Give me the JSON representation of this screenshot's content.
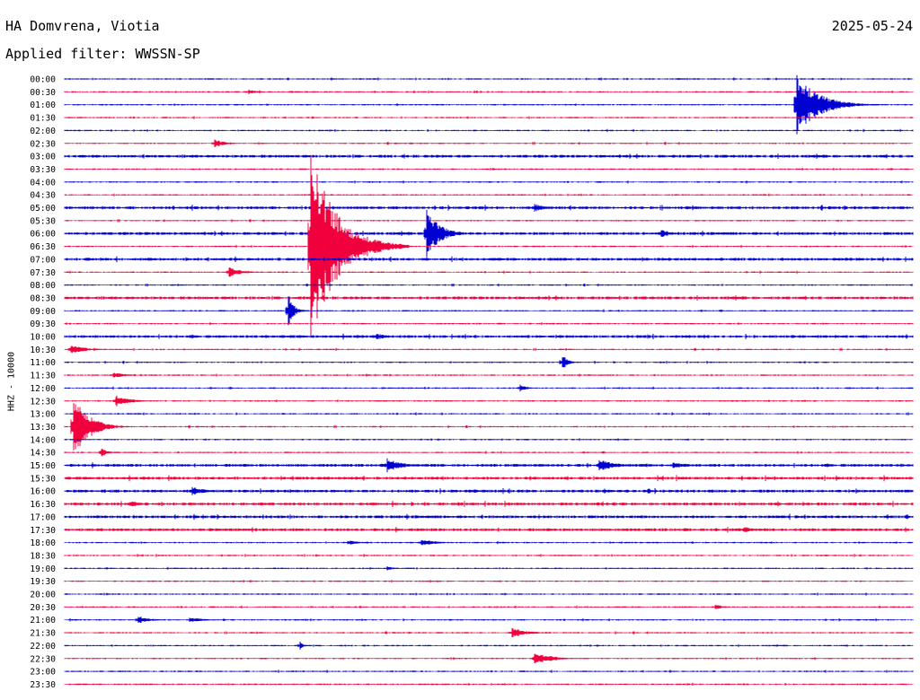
{
  "header": {
    "station": "HA Domvrena, Viotia",
    "date": "2025-05-24",
    "filter": "Applied filter: WWSSN-SP"
  },
  "chart_data": {
    "type": "line",
    "title": "",
    "ylabel": "HHZ - 10000",
    "xlabel": "",
    "colors": [
      "#0000d0",
      "#f0003c"
    ],
    "grid": false,
    "rows": [
      "00:00",
      "00:30",
      "01:00",
      "01:30",
      "02:00",
      "02:30",
      "03:00",
      "03:30",
      "04:00",
      "04:30",
      "05:00",
      "05:30",
      "06:00",
      "06:30",
      "07:00",
      "07:30",
      "08:00",
      "08:30",
      "09:00",
      "09:30",
      "10:00",
      "10:30",
      "11:00",
      "11:30",
      "12:00",
      "12:30",
      "13:00",
      "13:30",
      "14:00",
      "14:30",
      "15:00",
      "15:30",
      "16:00",
      "16:30",
      "17:00",
      "17:30",
      "18:00",
      "18:30",
      "19:00",
      "19:30",
      "20:00",
      "20:30",
      "21:00",
      "21:30",
      "22:00",
      "22:30",
      "23:00",
      "23:30"
    ],
    "noise_level": [
      1,
      1,
      1,
      1,
      1,
      1,
      2,
      1,
      1,
      1,
      2,
      1,
      2,
      1,
      2,
      1,
      1,
      2,
      1,
      1,
      2,
      1,
      1,
      1,
      1,
      1,
      1,
      1,
      1,
      1,
      2,
      2,
      2,
      2,
      2,
      2,
      1,
      1,
      1,
      1,
      1,
      1,
      1,
      1,
      1,
      1,
      1,
      1
    ],
    "events": [
      {
        "row": 2,
        "minute": 25.9,
        "amplitude": 34,
        "duration_min": 1.2
      },
      {
        "row": 5,
        "minute": 5.3,
        "amplitude": 5,
        "duration_min": 0.6
      },
      {
        "row": 1,
        "minute": 6.5,
        "amplitude": 3,
        "duration_min": 0.4
      },
      {
        "row": 13,
        "minute": 8.7,
        "amplitude": 108,
        "duration_min": 1.4
      },
      {
        "row": 12,
        "minute": 12.8,
        "amplitude": 28,
        "duration_min": 0.7
      },
      {
        "row": 12,
        "minute": 21.1,
        "amplitude": 5,
        "duration_min": 0.5
      },
      {
        "row": 10,
        "minute": 16.6,
        "amplitude": 5,
        "duration_min": 0.6
      },
      {
        "row": 15,
        "minute": 5.8,
        "amplitude": 6,
        "duration_min": 0.7
      },
      {
        "row": 18,
        "minute": 7.9,
        "amplitude": 20,
        "duration_min": 0.3
      },
      {
        "row": 20,
        "minute": 11.0,
        "amplitude": 4,
        "duration_min": 0.6
      },
      {
        "row": 21,
        "minute": 0.2,
        "amplitude": 5,
        "duration_min": 0.9
      },
      {
        "row": 22,
        "minute": 17.6,
        "amplitude": 9,
        "duration_min": 0.3
      },
      {
        "row": 23,
        "minute": 1.7,
        "amplitude": 3,
        "duration_min": 0.8
      },
      {
        "row": 24,
        "minute": 16.1,
        "amplitude": 4,
        "duration_min": 0.4
      },
      {
        "row": 25,
        "minute": 1.8,
        "amplitude": 7,
        "duration_min": 0.7
      },
      {
        "row": 27,
        "minute": 0.3,
        "amplitude": 38,
        "duration_min": 0.8
      },
      {
        "row": 29,
        "minute": 1.3,
        "amplitude": 6,
        "duration_min": 0.3
      },
      {
        "row": 30,
        "minute": 11.4,
        "amplitude": 8,
        "duration_min": 0.9
      },
      {
        "row": 30,
        "minute": 18.9,
        "amplitude": 8,
        "duration_min": 0.8
      },
      {
        "row": 30,
        "minute": 21.5,
        "amplitude": 4,
        "duration_min": 0.9
      },
      {
        "row": 32,
        "minute": 4.5,
        "amplitude": 6,
        "duration_min": 0.6
      },
      {
        "row": 32,
        "minute": 20.6,
        "amplitude": 4,
        "duration_min": 0.3
      },
      {
        "row": 33,
        "minute": 2.3,
        "amplitude": 4,
        "duration_min": 0.6
      },
      {
        "row": 35,
        "minute": 24.0,
        "amplitude": 4,
        "duration_min": 0.5
      },
      {
        "row": 36,
        "minute": 12.6,
        "amplitude": 4,
        "duration_min": 0.8
      },
      {
        "row": 36,
        "minute": 10.0,
        "amplitude": 3,
        "duration_min": 0.6
      },
      {
        "row": 38,
        "minute": 11.4,
        "amplitude": 3,
        "duration_min": 0.4
      },
      {
        "row": 41,
        "minute": 23.0,
        "amplitude": 3,
        "duration_min": 0.5
      },
      {
        "row": 42,
        "minute": 2.6,
        "amplitude": 5,
        "duration_min": 0.6
      },
      {
        "row": 42,
        "minute": 4.4,
        "amplitude": 3,
        "duration_min": 0.8
      },
      {
        "row": 43,
        "minute": 15.8,
        "amplitude": 6,
        "duration_min": 0.8
      },
      {
        "row": 44,
        "minute": 8.3,
        "amplitude": 6,
        "duration_min": 0.2
      },
      {
        "row": 45,
        "minute": 16.6,
        "amplitude": 7,
        "duration_min": 1.0
      }
    ]
  }
}
